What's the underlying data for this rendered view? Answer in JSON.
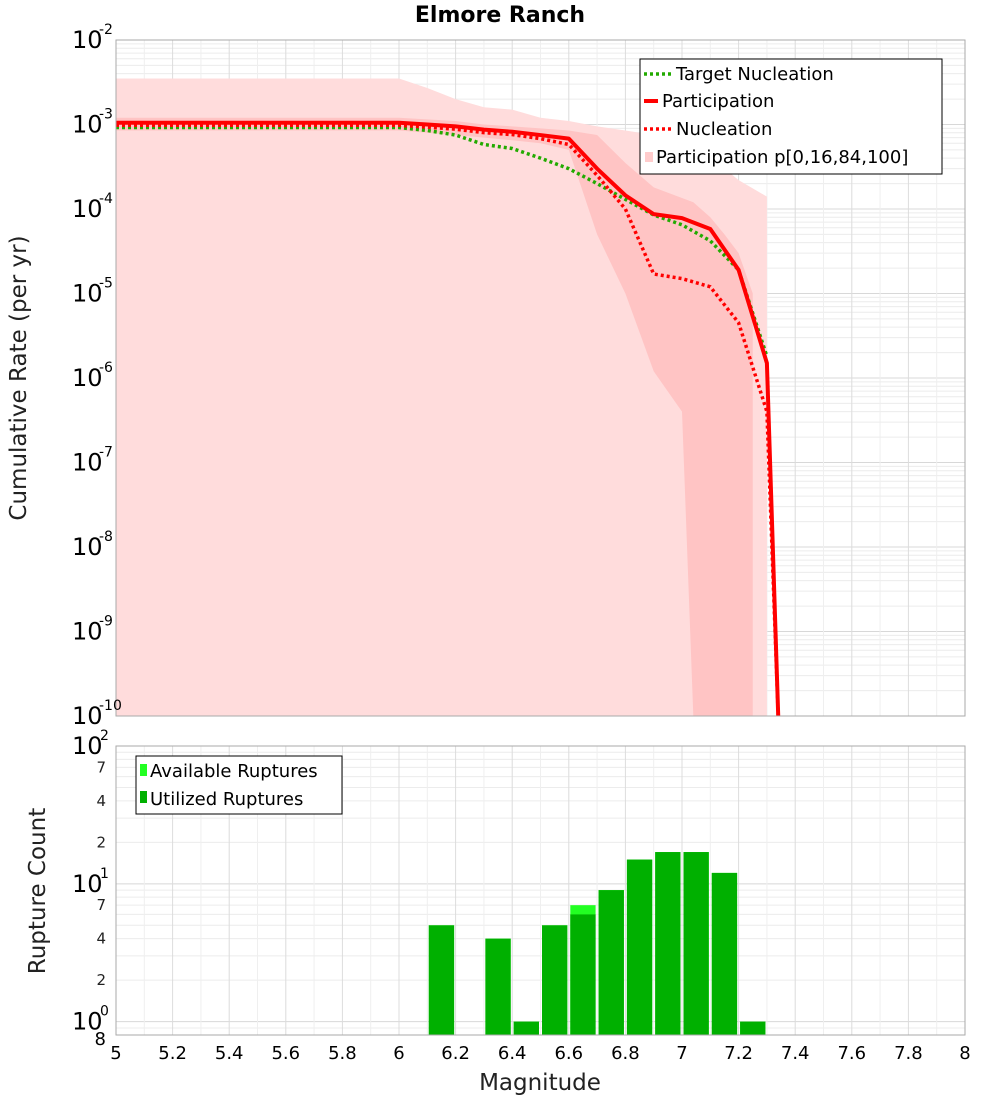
{
  "chart_data": [
    {
      "type": "line",
      "title": "Elmore Ranch",
      "xlabel": "Magnitude",
      "ylabel": "Cumulative Rate (per yr)",
      "yscale": "log",
      "xlim": [
        5,
        8
      ],
      "ylim_exp": [
        -10,
        -2
      ],
      "x_ticks": [
        "5",
        "5.2",
        "5.4",
        "5.6",
        "5.8",
        "6",
        "6.2",
        "6.4",
        "6.6",
        "6.8",
        "7",
        "7.2",
        "7.4",
        "7.6",
        "7.8",
        "8"
      ],
      "y_ticks": [
        {
          "base": "10",
          "exp": "-2"
        },
        {
          "base": "10",
          "exp": "-3"
        },
        {
          "base": "10",
          "exp": "-4"
        },
        {
          "base": "10",
          "exp": "-5"
        },
        {
          "base": "10",
          "exp": "-6"
        },
        {
          "base": "10",
          "exp": "-7"
        },
        {
          "base": "10",
          "exp": "-8"
        },
        {
          "base": "10",
          "exp": "-9"
        },
        {
          "base": "10",
          "exp": "-10"
        }
      ],
      "legend": [
        {
          "label": "Target Nucleation",
          "color": "#22aa00",
          "style": "dotted"
        },
        {
          "label": "Participation",
          "color": "#ff0000",
          "style": "solid"
        },
        {
          "label": "Nucleation",
          "color": "#ff0000",
          "style": "dotted"
        },
        {
          "label": "Participation p[0,16,84,100]",
          "color": "#ffcccc",
          "style": "band"
        }
      ],
      "series": [
        {
          "name": "Target Nucleation",
          "x": [
            5.0,
            6.0,
            6.1,
            6.2,
            6.3,
            6.4,
            6.5,
            6.6,
            6.7,
            6.8,
            6.9,
            7.0,
            7.1,
            7.2,
            7.3
          ],
          "y": [
            0.00092,
            0.00092,
            0.00085,
            0.00075,
            0.00058,
            0.00052,
            0.0004,
            0.0003,
            0.0002,
            0.00013,
            8.5e-05,
            6.5e-05,
            4.2e-05,
            1.9e-05,
            1.8e-06
          ]
        },
        {
          "name": "Participation",
          "x": [
            5.0,
            6.0,
            6.1,
            6.2,
            6.3,
            6.4,
            6.5,
            6.6,
            6.7,
            6.8,
            6.9,
            7.0,
            7.1,
            7.2,
            7.3,
            7.34
          ],
          "y": [
            0.00105,
            0.00105,
            0.001,
            0.00095,
            0.00087,
            0.00082,
            0.00075,
            0.00068,
            0.0003,
            0.000145,
            8.7e-05,
            7.8e-05,
            5.8e-05,
            1.9e-05,
            1.5e-06,
            1e-10
          ]
        },
        {
          "name": "Nucleation",
          "x": [
            5.0,
            6.0,
            6.1,
            6.2,
            6.3,
            6.4,
            6.5,
            6.6,
            6.7,
            6.8,
            6.9,
            7.0,
            7.1,
            7.2,
            7.3,
            7.34
          ],
          "y": [
            0.00098,
            0.00098,
            0.00093,
            0.00088,
            0.0008,
            0.00076,
            0.00068,
            0.00058,
            0.00025,
            0.0001,
            1.7e-05,
            1.5e-05,
            1.2e-05,
            4.5e-06,
            4e-07,
            1e-10
          ]
        }
      ],
      "band_outer": {
        "x": [
          5.0,
          6.0,
          6.1,
          6.2,
          6.3,
          6.4,
          6.5,
          6.6,
          6.7,
          6.8,
          6.9,
          7.0,
          7.1,
          7.2,
          7.3
        ],
        "upper": [
          0.0035,
          0.0035,
          0.0027,
          0.002,
          0.0016,
          0.0015,
          0.0012,
          0.0011,
          0.00095,
          0.00085,
          0.00075,
          0.0006,
          0.00042,
          0.00022,
          0.00014
        ],
        "lower": [
          1e-10,
          1e-10,
          1e-10,
          1e-10,
          1e-10,
          1e-10,
          1e-10,
          1e-10,
          1e-10,
          1e-10,
          1e-10,
          1e-10,
          1e-10,
          1e-10,
          1e-10
        ]
      },
      "band_inner": {
        "x": [
          5.0,
          6.0,
          6.1,
          6.2,
          6.3,
          6.4,
          6.5,
          6.6,
          6.7,
          6.8,
          6.9,
          7.0,
          7.04,
          7.1,
          7.15,
          7.2,
          7.25
        ],
        "upper": [
          0.0012,
          0.0012,
          0.00115,
          0.0011,
          0.001,
          0.00095,
          0.0009,
          0.00085,
          0.00075,
          0.00035,
          0.00018,
          0.000135,
          0.00012,
          8e-05,
          5e-05,
          3e-05,
          1e-05
        ],
        "lower": [
          0.00085,
          0.00085,
          0.0008,
          0.00075,
          0.0007,
          0.00065,
          0.0006,
          0.0005,
          5e-05,
          1e-05,
          1.2e-06,
          4e-07,
          1e-10,
          1e-10,
          1e-10,
          1e-10,
          1e-10
        ]
      }
    },
    {
      "type": "bar",
      "xlabel": "Magnitude",
      "ylabel": "Rupture Count",
      "yscale": "log",
      "ylim": [
        0.8,
        100
      ],
      "y_major_ticks": [
        {
          "value": 100,
          "base": "10",
          "exp": "2"
        },
        {
          "value": 10,
          "base": "10",
          "exp": "1"
        },
        {
          "value": 1,
          "base": "10",
          "exp": "0"
        }
      ],
      "y_minor_ticks": [
        {
          "value": 70,
          "label": "7"
        },
        {
          "value": 40,
          "label": "4"
        },
        {
          "value": 20,
          "label": "2"
        },
        {
          "value": 7,
          "label": "7"
        },
        {
          "value": 4,
          "label": "4"
        },
        {
          "value": 2,
          "label": "2"
        },
        {
          "value": 0.8,
          "label": "8"
        }
      ],
      "bin_width": 0.1,
      "legend": [
        {
          "label": "Available Ruptures",
          "color": "#22ff22"
        },
        {
          "label": "Utilized Ruptures",
          "color": "#00b000"
        }
      ],
      "series": [
        {
          "name": "Available Ruptures",
          "x": [
            6.15,
            6.35,
            6.45,
            6.55,
            6.65,
            6.75,
            6.85,
            6.95,
            7.05,
            7.15,
            7.25
          ],
          "values": [
            5,
            4,
            1,
            5,
            7,
            9,
            15,
            17,
            17,
            12,
            1
          ]
        },
        {
          "name": "Utilized Ruptures",
          "x": [
            6.15,
            6.35,
            6.45,
            6.55,
            6.65,
            6.75,
            6.85,
            6.95,
            7.05,
            7.15,
            7.25
          ],
          "values": [
            5,
            4,
            1,
            5,
            6,
            9,
            15,
            17,
            17,
            12,
            1
          ]
        }
      ]
    }
  ]
}
